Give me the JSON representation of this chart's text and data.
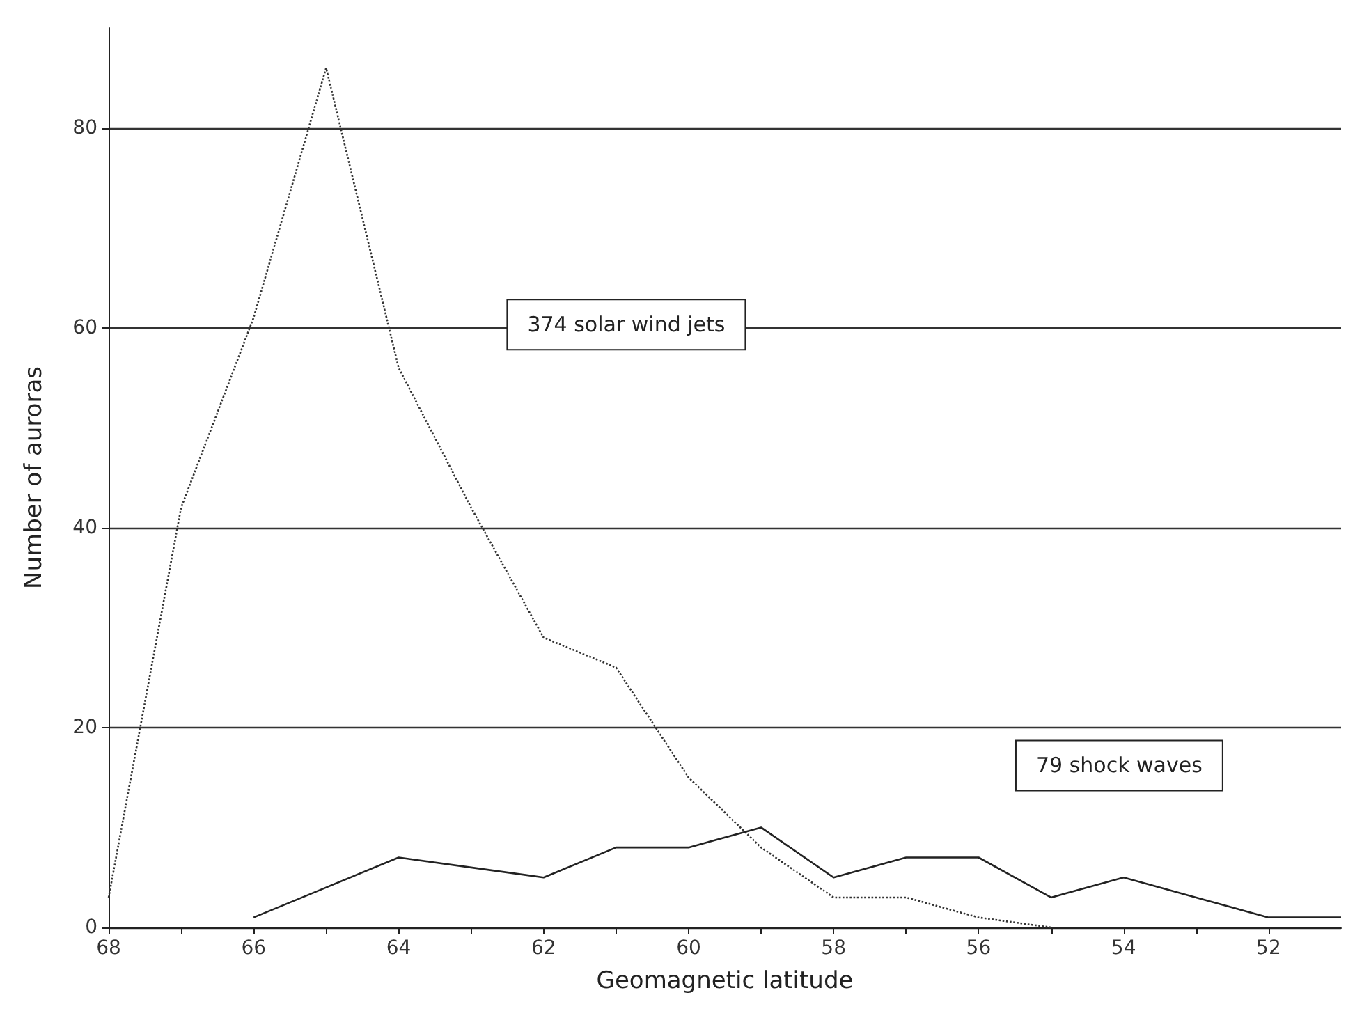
{
  "chart_data": {
    "type": "line",
    "xlabel": "Geomagnetic latitude",
    "ylabel": "Number of auroras",
    "xlim": [
      68,
      51
    ],
    "ylim": [
      0,
      90
    ],
    "xticks": [
      68,
      {
        "value": 67,
        "label": null
      },
      66,
      {
        "value": 65,
        "label": null
      },
      64,
      {
        "value": 63,
        "label": null
      },
      62,
      {
        "value": 61,
        "label": null
      },
      60,
      {
        "value": 59,
        "label": null
      },
      58,
      {
        "value": 57,
        "label": null
      },
      56,
      {
        "value": 55,
        "label": null
      },
      54,
      {
        "value": 53,
        "label": null
      },
      52
    ],
    "yticks": [
      0,
      20,
      40,
      60,
      80
    ],
    "grid": "y",
    "marker": "none",
    "series": [
      {
        "color": "#333333",
        "line_style": "dotted",
        "x": [
          68,
          67,
          66,
          65,
          64,
          63,
          62,
          61,
          60,
          59,
          58,
          57,
          56,
          55
        ],
        "values": [
          3,
          42,
          61,
          86,
          56,
          42,
          29,
          26,
          15,
          8,
          3,
          3,
          1,
          0
        ]
      },
      {
        "color": "#222222",
        "line_style": "solid",
        "x": [
          66,
          65,
          64,
          63,
          62,
          61,
          60,
          59,
          58,
          57,
          56,
          55,
          54,
          53,
          52,
          51
        ],
        "values": [
          1,
          4,
          7,
          6,
          5,
          8,
          8,
          10,
          5,
          7,
          7,
          3,
          5,
          3,
          1,
          1
        ]
      }
    ],
    "annotations": [
      "374 solar wind jets",
      "79 shock waves"
    ]
  }
}
